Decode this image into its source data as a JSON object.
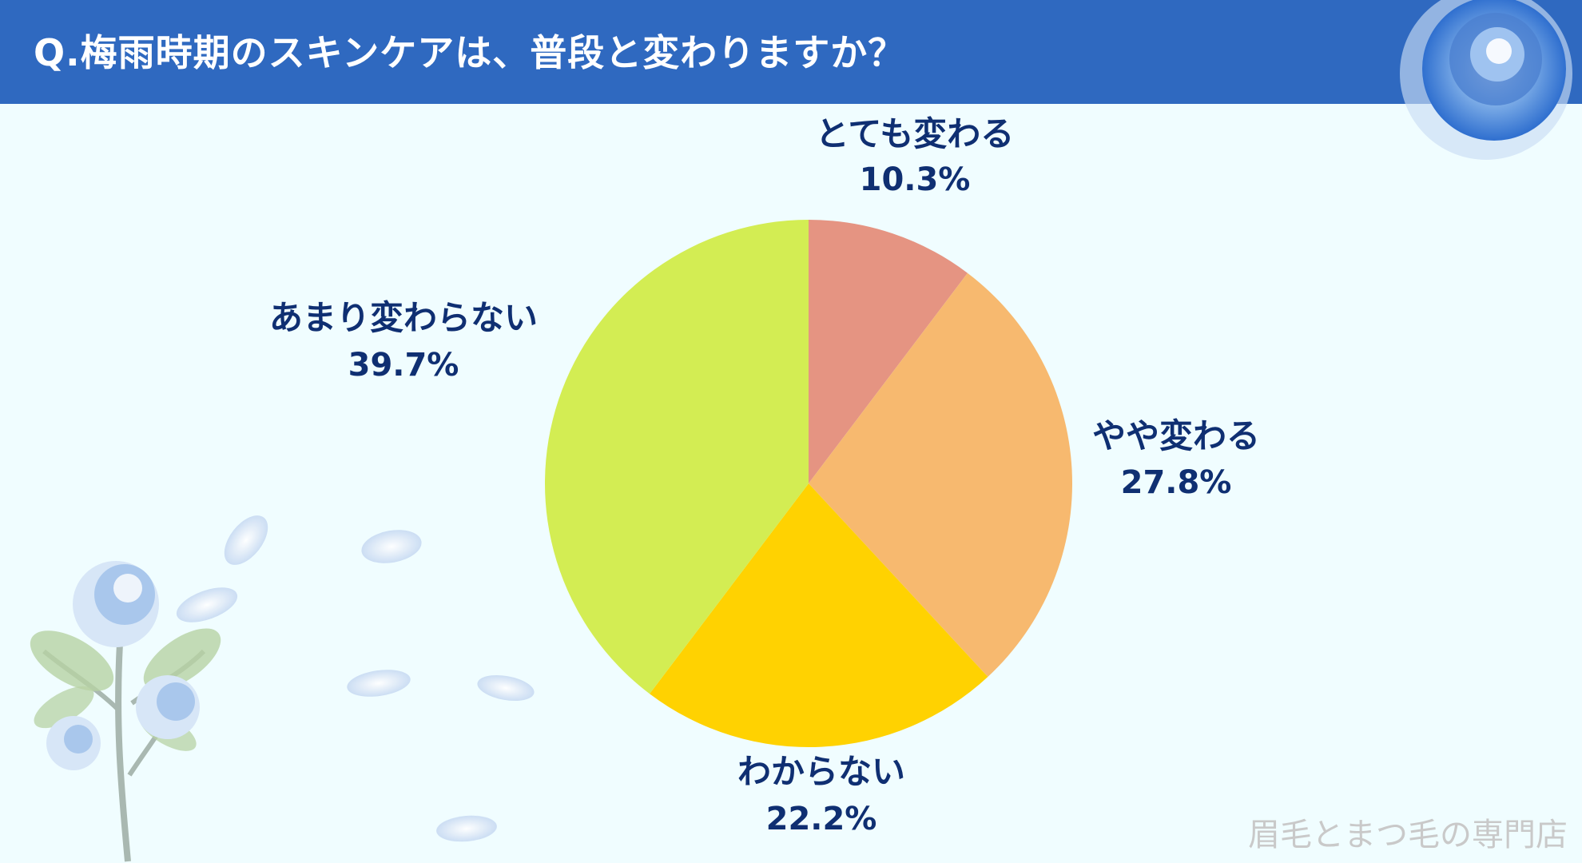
{
  "header": {
    "title": "Q.梅雨時期のスキンケアは、普段と変わりますか？"
  },
  "watermark": "眉毛とまつ毛の専門店",
  "chart_data": {
    "type": "pie",
    "title": "Q.梅雨時期のスキンケアは、普段と変わりますか？",
    "slices": [
      {
        "label": "とても変わる",
        "value": 10.3,
        "value_label": "10.3%",
        "color": "#e59482"
      },
      {
        "label": "やや変わる",
        "value": 27.8,
        "value_label": "27.8%",
        "color": "#f7b96f"
      },
      {
        "label": "わからない",
        "value": 22.2,
        "value_label": "22.2%",
        "color": "#ffd201"
      },
      {
        "label": "あまり変わらない",
        "value": 39.7,
        "value_label": "39.7%",
        "color": "#d3ed53"
      }
    ],
    "start_angle": "top",
    "direction": "clockwise",
    "legend": "none"
  },
  "colors": {
    "header": "#2f69c0",
    "background": "#f0fdff",
    "label_text": "#0f2f72"
  },
  "decorations": {
    "top_right": "blue-rose-icon",
    "bottom_left": "blue-rose-bouquet-icon",
    "petals": "petal-icon"
  }
}
